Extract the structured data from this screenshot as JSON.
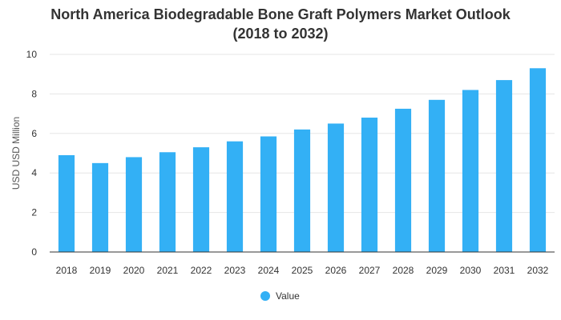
{
  "chart_data": {
    "type": "bar",
    "title_line1": "North America Biodegradable Bone Graft Polymers Market Outlook",
    "title_line2": "(2018 to 2032)",
    "xlabel": "",
    "ylabel": "USD USD Million",
    "ylim": [
      0,
      10
    ],
    "yticks": [
      0,
      2,
      4,
      6,
      8,
      10
    ],
    "grid": true,
    "legend_position": "bottom-center",
    "categories": [
      "2018",
      "2019",
      "2020",
      "2021",
      "2022",
      "2023",
      "2024",
      "2025",
      "2026",
      "2027",
      "2028",
      "2029",
      "2030",
      "2031",
      "2032"
    ],
    "series": [
      {
        "name": "Value",
        "color": "#33b0f5",
        "values": [
          4.9,
          4.5,
          4.8,
          5.05,
          5.3,
          5.6,
          5.85,
          6.2,
          6.5,
          6.8,
          7.25,
          7.7,
          8.2,
          8.7,
          9.3
        ]
      }
    ]
  }
}
